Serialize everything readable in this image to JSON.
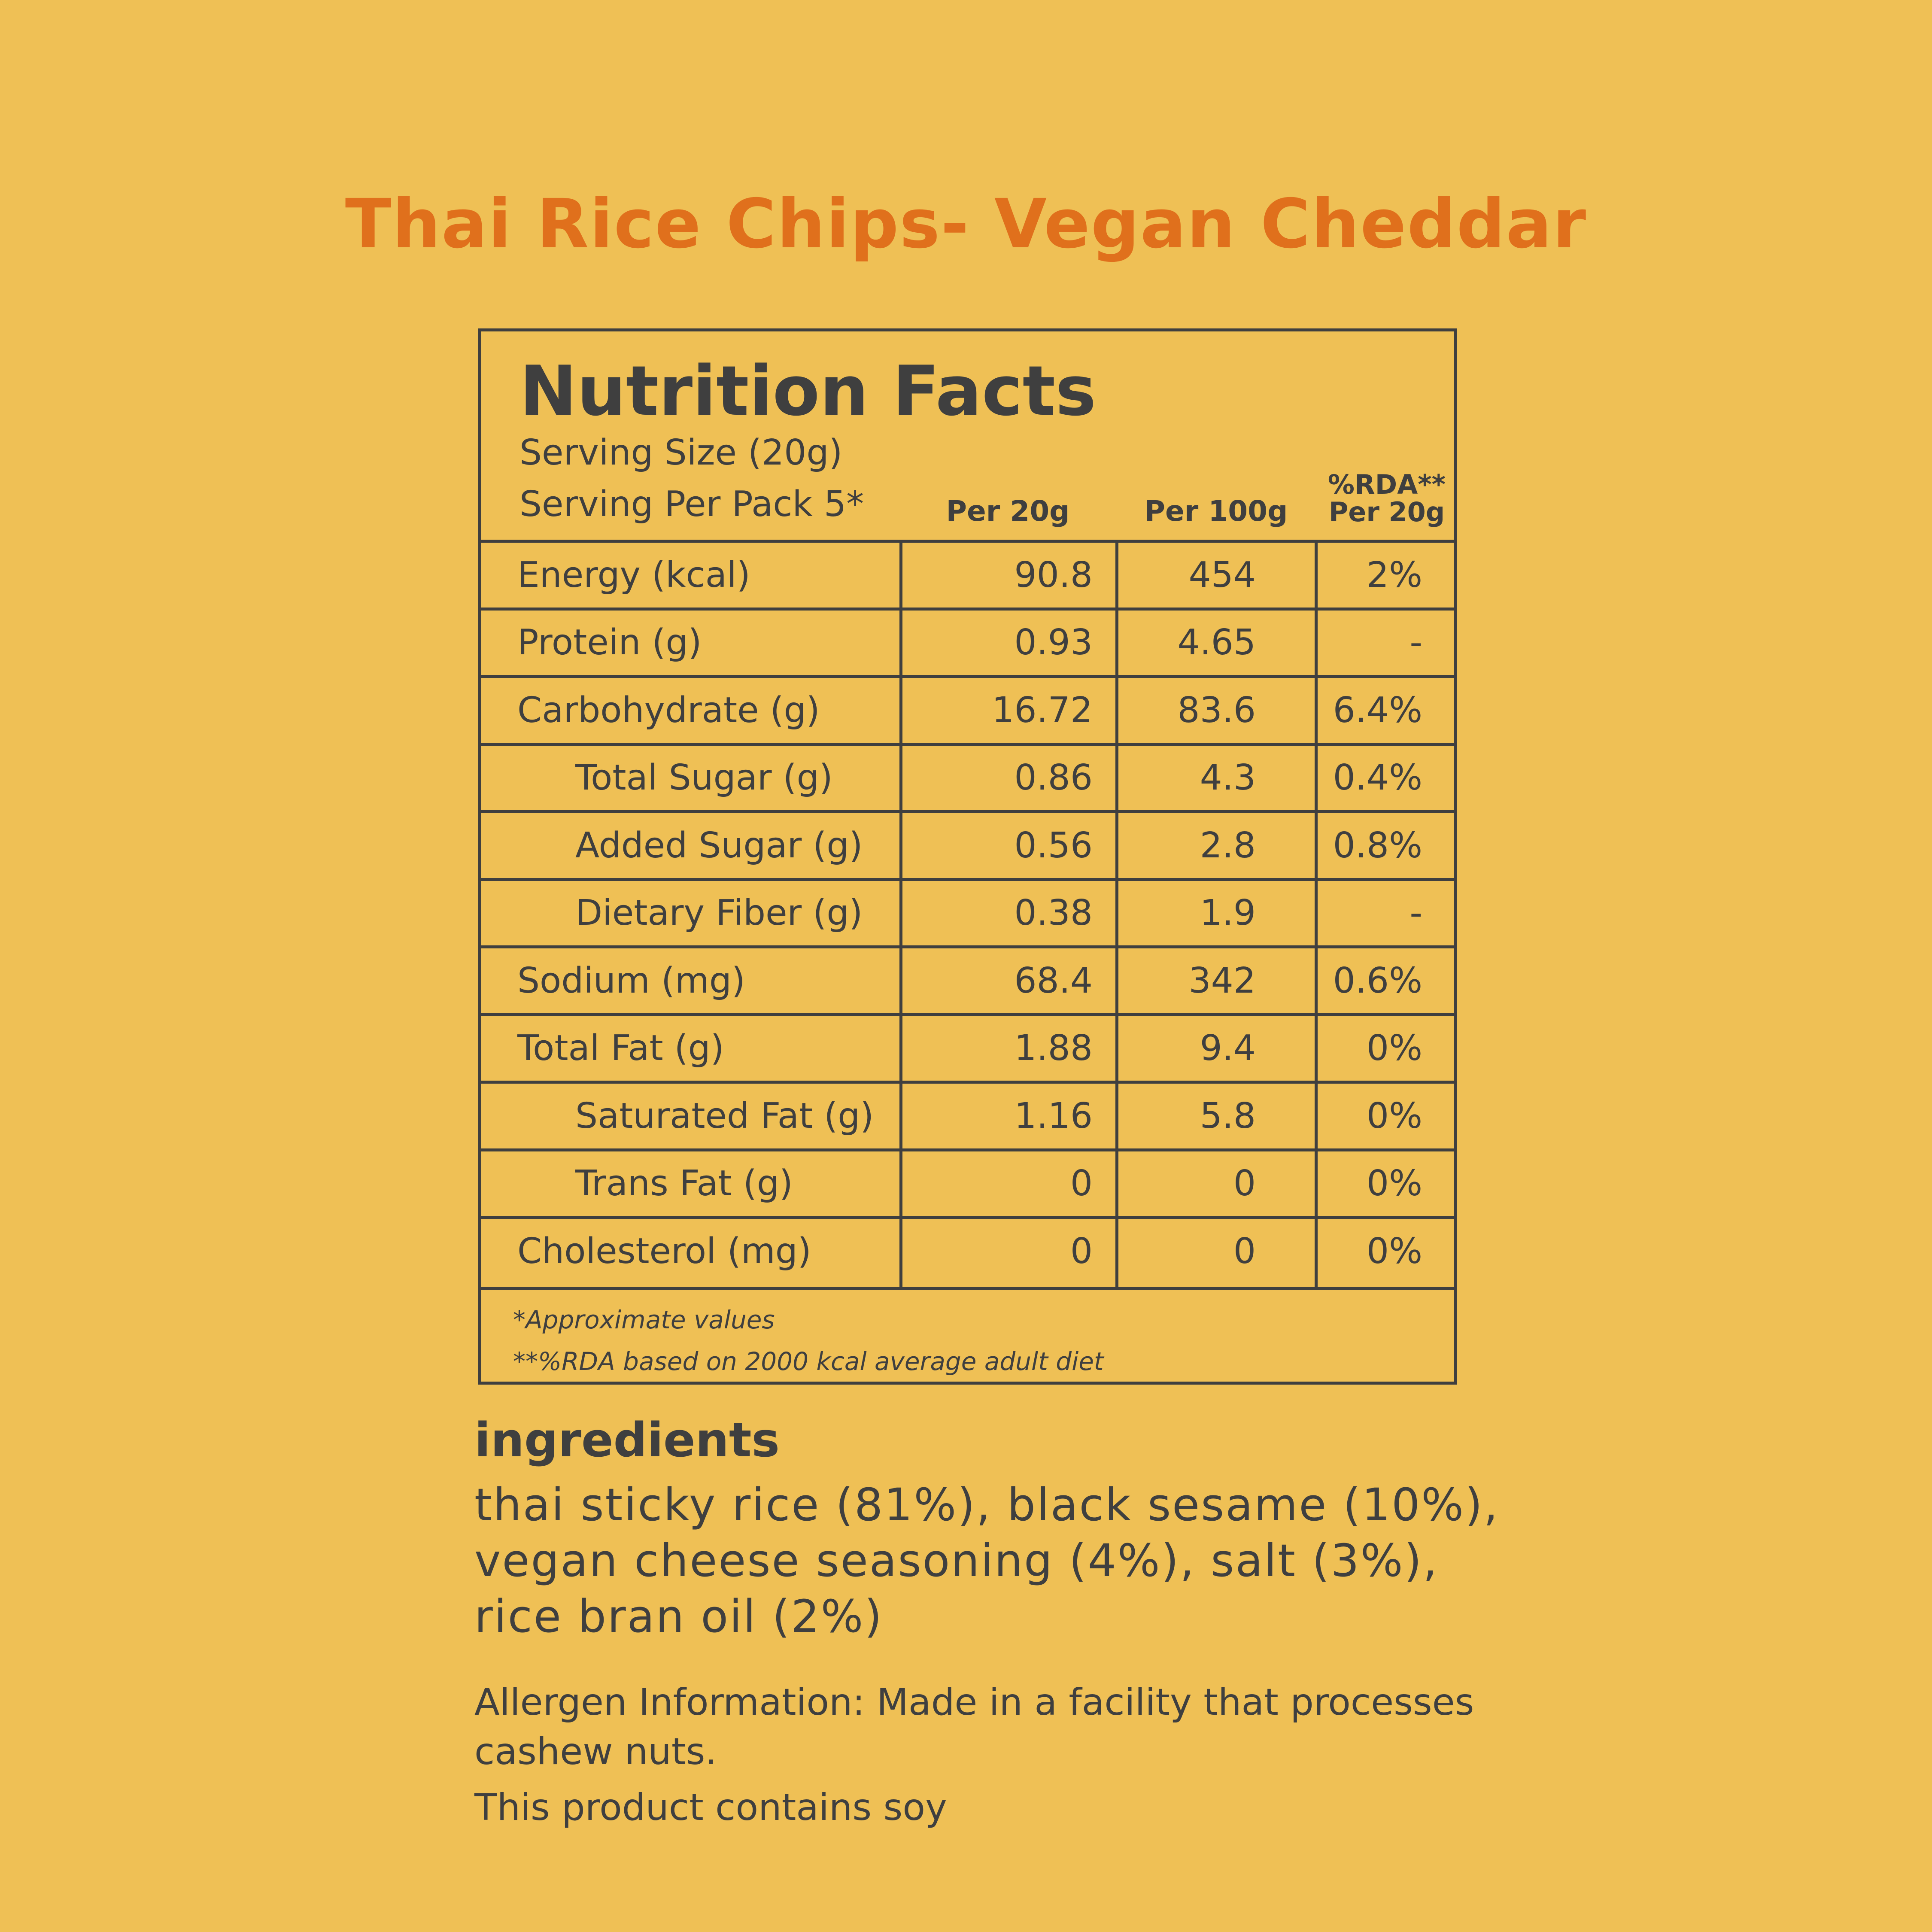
{
  "title": "Thai Rice Chips- Vegan Cheddar",
  "nutrition": {
    "heading": "Nutrition Facts",
    "serving_size": "Serving Size (20g)",
    "servings_per_pack": "Serving Per Pack 5*",
    "columns": {
      "per_20g": "Per 20g",
      "per_100g": "Per 100g",
      "rda_line1": "%RDA**",
      "rda_line2": "Per 20g"
    },
    "rows": [
      {
        "name": "Energy (kcal)",
        "per_20g": "90.8",
        "per_100g": "454",
        "rda": "2%"
      },
      {
        "name": "Protein (g)",
        "per_20g": "0.93",
        "per_100g": "4.65",
        "rda": "-"
      },
      {
        "name": "Carbohydrate (g)",
        "per_20g": "16.72",
        "per_100g": "83.6",
        "rda": "6.4%"
      },
      {
        "name": "Total Sugar (g)",
        "per_20g": "0.86",
        "per_100g": "4.3",
        "rda": "0.4%"
      },
      {
        "name": "Added Sugar (g)",
        "per_20g": "0.56",
        "per_100g": "2.8",
        "rda": "0.8%"
      },
      {
        "name": "Dietary Fiber (g)",
        "per_20g": "0.38",
        "per_100g": "1.9",
        "rda": "-"
      },
      {
        "name": "Sodium (mg)",
        "per_20g": "68.4",
        "per_100g": "342",
        "rda": "0.6%"
      },
      {
        "name": "Total Fat (g)",
        "per_20g": "1.88",
        "per_100g": "9.4",
        "rda": "0%"
      },
      {
        "name": "Saturated Fat (g)",
        "per_20g": "1.16",
        "per_100g": "5.8",
        "rda": "0%"
      },
      {
        "name": "Trans Fat (g)",
        "per_20g": "0",
        "per_100g": "0",
        "rda": "0%"
      },
      {
        "name": "Cholesterol (mg)",
        "per_20g": "0",
        "per_100g": "0",
        "rda": "0%"
      }
    ],
    "note1": "*Approximate values",
    "note2": "**%RDA based on 2000 kcal average adult diet"
  },
  "ingredients": {
    "heading": "ingredients",
    "line1": "thai sticky rice (81%), black sesame (10%),",
    "line2": "vegan cheese seasoning (4%), salt (3%),",
    "line3": "rice bran oil (2%)"
  },
  "allergen": {
    "line1": "Allergen Information: Made in a facility that processes",
    "line2": "cashew nuts.",
    "line3": "This product contains soy"
  },
  "colors": {
    "background": "#efc055",
    "title": "#e0701c",
    "text": "#3f3f3f"
  }
}
